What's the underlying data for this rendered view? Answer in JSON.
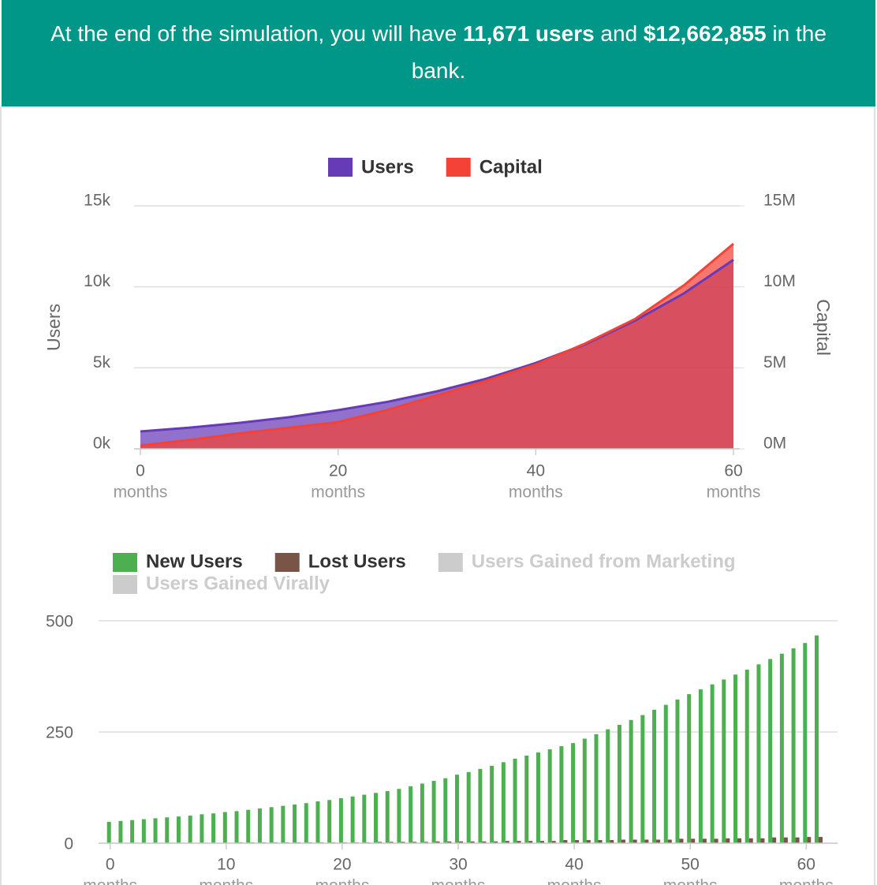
{
  "header": {
    "text_before": "At the end of the simulation, you will have ",
    "users": "11,671 users",
    "text_middle": " and ",
    "capital": "$12,662,855",
    "text_after": " in the bank."
  },
  "chart_data": [
    {
      "type": "area",
      "x_unit_label": "months",
      "y_label": "Users",
      "y2_label": "Capital",
      "x": [
        0,
        5,
        10,
        15,
        20,
        25,
        30,
        35,
        40,
        45,
        50,
        55,
        60
      ],
      "xlim": [
        0,
        60
      ],
      "xticks": [
        0,
        20,
        40,
        60
      ],
      "ylim": [
        0,
        15000
      ],
      "yticks": [
        {
          "value": 0,
          "label": "0k"
        },
        {
          "value": 5000,
          "label": "5k"
        },
        {
          "value": 10000,
          "label": "10k"
        },
        {
          "value": 15000,
          "label": "15k"
        }
      ],
      "y2lim": [
        0,
        15000000
      ],
      "y2ticks": [
        {
          "value": 0,
          "label": "0M"
        },
        {
          "value": 5000000,
          "label": "5M"
        },
        {
          "value": 10000000,
          "label": "10M"
        },
        {
          "value": 15000000,
          "label": "15M"
        }
      ],
      "grid": true,
      "series": [
        {
          "name": "Users",
          "color": "#673ab7",
          "values": [
            1070,
            1310,
            1600,
            1950,
            2390,
            2900,
            3550,
            4330,
            5300,
            6450,
            7900,
            9600,
            11671
          ]
        },
        {
          "name": "Capital",
          "color": "#f44336",
          "axis": "y2",
          "values": [
            200000,
            550000,
            950000,
            1300000,
            1650000,
            2400000,
            3300000,
            4200000,
            5200000,
            6500000,
            8000000,
            10100000,
            12662855
          ]
        }
      ]
    },
    {
      "type": "bar",
      "x_unit_label": "months",
      "x": [
        0,
        1,
        2,
        3,
        4,
        5,
        6,
        7,
        8,
        9,
        10,
        11,
        12,
        13,
        14,
        15,
        16,
        17,
        18,
        19,
        20,
        21,
        22,
        23,
        24,
        25,
        26,
        27,
        28,
        29,
        30,
        31,
        32,
        33,
        34,
        35,
        36,
        37,
        38,
        39,
        40,
        41,
        42,
        43,
        44,
        45,
        46,
        47,
        48,
        49,
        50,
        51,
        52,
        53,
        54,
        55,
        56,
        57,
        58,
        59,
        60,
        61
      ],
      "xlim": [
        -1,
        62.7
      ],
      "xticks": [
        0,
        10,
        20,
        30,
        40,
        50,
        60
      ],
      "ylim": [
        0,
        500
      ],
      "yticks": [
        0,
        250,
        500
      ],
      "grid": true,
      "series": [
        {
          "name": "New Users",
          "color": "#4caf50",
          "values": [
            48,
            50,
            52,
            54,
            56,
            58,
            60,
            62,
            65,
            67,
            70,
            72,
            75,
            78,
            81,
            84,
            87,
            90,
            94,
            97,
            101,
            105,
            109,
            113,
            117,
            122,
            128,
            134,
            140,
            146,
            154,
            160,
            167,
            174,
            182,
            190,
            197,
            204,
            211,
            218,
            225,
            235,
            245,
            256,
            266,
            277,
            288,
            300,
            311,
            323,
            335,
            346,
            357,
            368,
            379,
            390,
            402,
            414,
            426,
            438,
            450,
            467
          ]
        },
        {
          "name": "Lost Users",
          "color": "#795548",
          "values": [
            1,
            1,
            1,
            1,
            1,
            1,
            1,
            1,
            1,
            1,
            1,
            2,
            2,
            2,
            2,
            2,
            2,
            2,
            2,
            2,
            2,
            2,
            2,
            3,
            3,
            3,
            3,
            3,
            4,
            4,
            4,
            4,
            4,
            4,
            5,
            5,
            5,
            5,
            5,
            7,
            7,
            7,
            7,
            7,
            8,
            8,
            8,
            8,
            8,
            10,
            10,
            10,
            10,
            11,
            11,
            11,
            11,
            13,
            13,
            13,
            14,
            14
          ]
        }
      ],
      "hidden_series": [
        {
          "name": "Users Gained from Marketing",
          "color": "#cccccc"
        },
        {
          "name": "Users Gained Virally",
          "color": "#cccccc"
        }
      ]
    }
  ]
}
